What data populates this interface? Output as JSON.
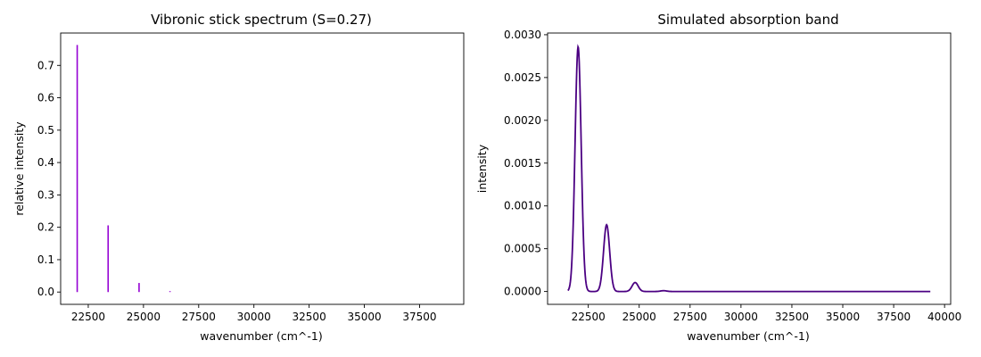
{
  "chart_data": [
    {
      "type": "bar",
      "title": "Vibronic stick spectrum (S=0.27)",
      "xlabel": "wavenumber (cm^-1)",
      "ylabel": "relative intensity",
      "xlim": [
        21250,
        39500
      ],
      "ylim": [
        -0.038,
        0.8
      ],
      "grid": false,
      "color": "#9400d3",
      "xticks": [
        22500,
        25000,
        27500,
        30000,
        32500,
        35000,
        37500
      ],
      "xtick_labels": [
        "22500",
        "25000",
        "27500",
        "30000",
        "32500",
        "35000",
        "37500"
      ],
      "yticks": [
        0.0,
        0.1,
        0.2,
        0.3,
        0.4,
        0.5,
        0.6,
        0.7
      ],
      "ytick_labels": [
        "0.0",
        "0.1",
        "0.2",
        "0.3",
        "0.4",
        "0.5",
        "0.6",
        "0.7"
      ],
      "x": [
        22000,
        23400,
        24800,
        26200
      ],
      "values": [
        0.763,
        0.206,
        0.028,
        0.0025
      ]
    },
    {
      "type": "line",
      "title": "Simulated absorption band",
      "xlabel": "wavenumber (cm^-1)",
      "ylabel": "intensity",
      "xlim": [
        20500,
        40300
      ],
      "ylim": [
        -0.00015,
        0.00302
      ],
      "grid": false,
      "color": "#4b0082",
      "xticks": [
        22500,
        25000,
        27500,
        30000,
        32500,
        35000,
        37500,
        40000
      ],
      "xtick_labels": [
        "22500",
        "25000",
        "27500",
        "30000",
        "32500",
        "35000",
        "37500",
        "40000"
      ],
      "yticks": [
        0.0,
        0.0005,
        0.001,
        0.0015,
        0.002,
        0.0025,
        0.003
      ],
      "ytick_labels": [
        "0.0000",
        "0.0005",
        "0.0010",
        "0.0015",
        "0.0020",
        "0.0025",
        "0.0030"
      ],
      "x_range": [
        21500,
        39300
      ],
      "peaks": [
        {
          "x": 22000,
          "y": 0.00286
        },
        {
          "x": 23400,
          "y": 0.00078
        },
        {
          "x": 24800,
          "y": 0.000105
        },
        {
          "x": 26200,
          "y": 9.5e-06
        }
      ],
      "peak_width": 150
    }
  ]
}
